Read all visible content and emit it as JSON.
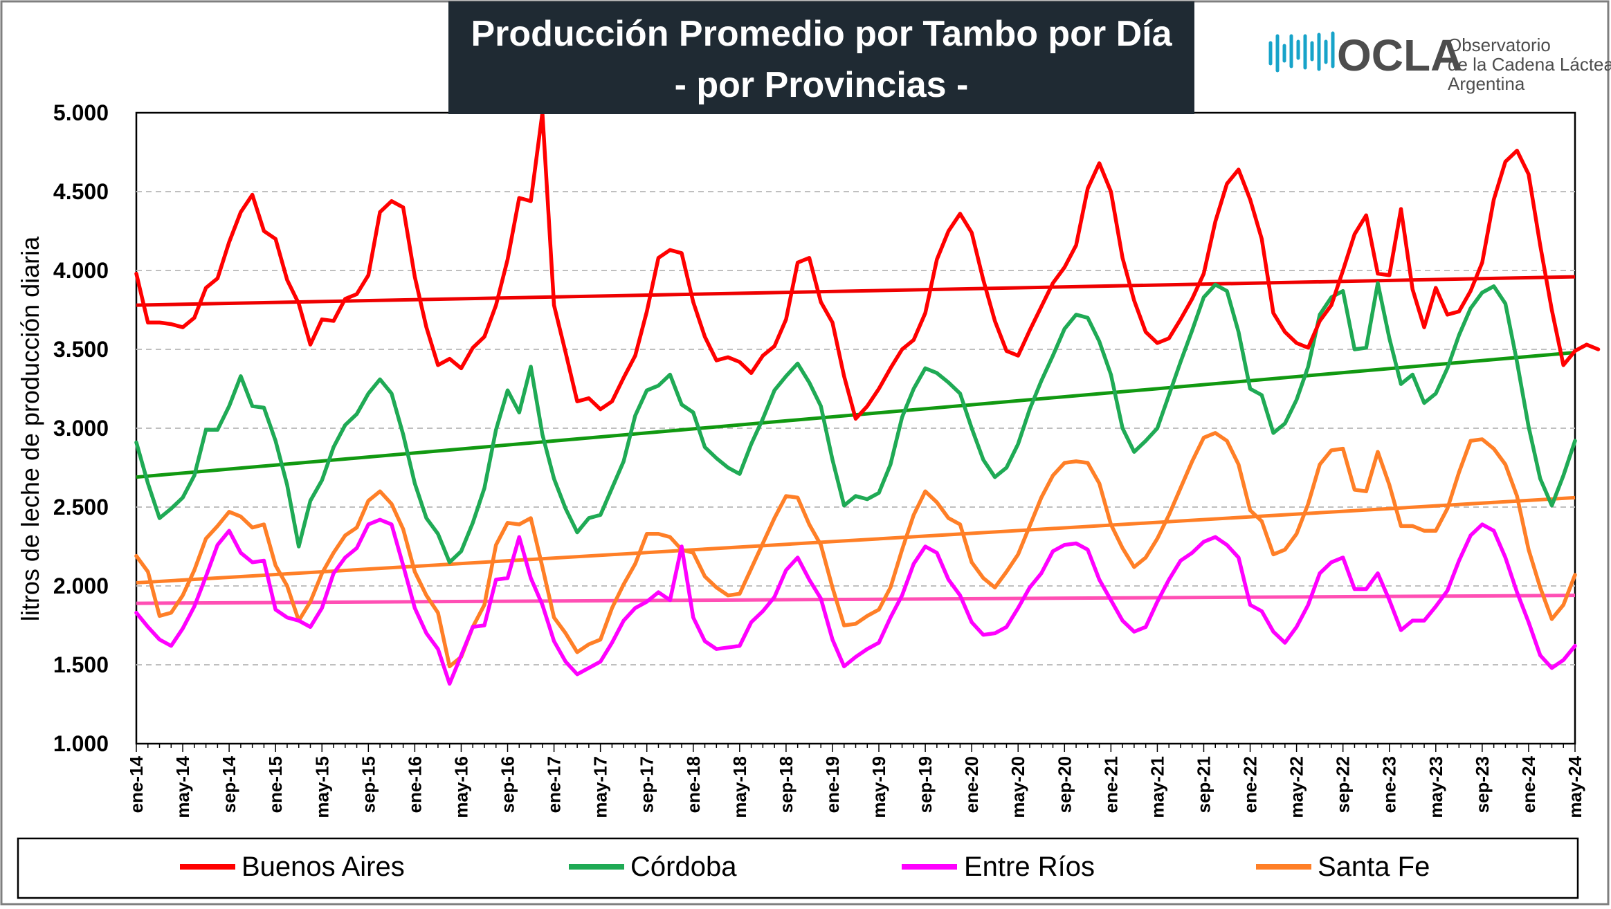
{
  "logo": {
    "name": "OCLA",
    "line1": "Observatorio",
    "line2": "de la Cadena Láctea",
    "line3": "Argentina"
  },
  "colors": {
    "buenos_aires": "#ff0000",
    "cordoba": "#1faa55",
    "entre_rios": "#ff00ff",
    "santa_fe": "#ff7f27",
    "trend_buenos_aires": "#ee0000",
    "trend_cordoba": "#119911",
    "trend_entre_rios": "#ff4fb4",
    "trend_santa_fe": "#ff7f27",
    "title_bg": "#1f2a33",
    "grid": "#bfbfbf",
    "logo_accent": "#17a3c9"
  },
  "chart_data": {
    "type": "line",
    "title_line1": "Producción Promedio por Tambo por Día",
    "title_line2": "- por Provincias -",
    "ylabel": "litros de leche de producción diaria",
    "ylim": [
      1000,
      5000
    ],
    "y_ticks": [
      "1.000",
      "1.500",
      "2.000",
      "2.500",
      "3.000",
      "3.500",
      "4.000",
      "4.500",
      "5.000"
    ],
    "y_tick_values": [
      1000,
      1500,
      2000,
      2500,
      3000,
      3500,
      4000,
      4500,
      5000
    ],
    "x_tick_labels": [
      "ene-14",
      "may-14",
      "sep-14",
      "ene-15",
      "may-15",
      "sep-15",
      "ene-16",
      "may-16",
      "sep-16",
      "ene-17",
      "may-17",
      "sep-17",
      "ene-18",
      "may-18",
      "sep-18",
      "ene-19",
      "may-19",
      "sep-19",
      "ene-20",
      "may-20",
      "sep-20",
      "ene-21",
      "may-21",
      "sep-21",
      "ene-22",
      "may-22",
      "sep-22",
      "ene-23",
      "may-23",
      "sep-23",
      "ene-24",
      "may-24"
    ],
    "x_start": "ene-14",
    "x_end": "may-24",
    "n_months": 125,
    "series": [
      {
        "name": "Buenos Aires",
        "key": "buenos_aires",
        "values": [
          3980,
          3670,
          3670,
          3660,
          3640,
          3700,
          3890,
          3950,
          4180,
          4370,
          4480,
          4250,
          4200,
          3940,
          3790,
          3530,
          3690,
          3680,
          3820,
          3850,
          3970,
          4370,
          4440,
          4400,
          3960,
          3640,
          3400,
          3440,
          3380,
          3510,
          3580,
          3780,
          4070,
          4460,
          4440,
          5000,
          3780,
          3480,
          3170,
          3190,
          3120,
          3170,
          3320,
          3460,
          3740,
          4080,
          4130,
          4110,
          3800,
          3580,
          3430,
          3450,
          3420,
          3350,
          3460,
          3520,
          3690,
          4050,
          4080,
          3800,
          3670,
          3330,
          3060,
          3140,
          3250,
          3380,
          3500,
          3560,
          3730,
          4070,
          4250,
          4360,
          4240,
          3940,
          3680,
          3490,
          3460,
          3620,
          3770,
          3920,
          4020,
          4160,
          4520,
          4680,
          4500,
          4080,
          3810,
          3610,
          3540,
          3570,
          3690,
          3820,
          3980,
          4310,
          4550,
          4640,
          4450,
          4200,
          3730,
          3610,
          3540,
          3510,
          3680,
          3780,
          4000,
          4230,
          4350,
          3980,
          3970,
          4390,
          3880,
          3640,
          3890,
          3720,
          3740,
          3870,
          4050,
          4450,
          4690,
          4760,
          4610,
          4160,
          3750,
          3400,
          3490,
          3530,
          3500
        ],
        "trend": [
          3780,
          3960
        ]
      },
      {
        "name": "Córdoba",
        "key": "cordoba",
        "values": [
          2910,
          2650,
          2430,
          2490,
          2560,
          2700,
          2990,
          2990,
          3140,
          3330,
          3140,
          3130,
          2920,
          2640,
          2250,
          2540,
          2670,
          2880,
          3020,
          3090,
          3220,
          3310,
          3220,
          2960,
          2650,
          2430,
          2330,
          2150,
          2220,
          2400,
          2620,
          2990,
          3240,
          3100,
          3390,
          2960,
          2680,
          2490,
          2340,
          2430,
          2450,
          2620,
          2790,
          3080,
          3240,
          3270,
          3340,
          3150,
          3100,
          2880,
          2810,
          2750,
          2710,
          2900,
          3060,
          3240,
          3330,
          3410,
          3290,
          3140,
          2800,
          2510,
          2570,
          2550,
          2590,
          2770,
          3070,
          3250,
          3380,
          3350,
          3290,
          3220,
          3000,
          2800,
          2690,
          2750,
          2900,
          3120,
          3300,
          3460,
          3630,
          3720,
          3700,
          3550,
          3340,
          3000,
          2850,
          2920,
          3000,
          3210,
          3420,
          3620,
          3830,
          3910,
          3870,
          3610,
          3250,
          3210,
          2970,
          3030,
          3180,
          3390,
          3720,
          3830,
          3870,
          3500,
          3510,
          3920,
          3570,
          3280,
          3340,
          3160,
          3220,
          3380,
          3590,
          3760,
          3860,
          3900,
          3790,
          3420,
          3010,
          2680,
          2510,
          2700,
          2920
        ],
        "trend": [
          2690,
          3480
        ]
      },
      {
        "name": "Entre Ríos",
        "key": "entre_rios",
        "values": [
          1830,
          1740,
          1660,
          1620,
          1730,
          1870,
          2060,
          2260,
          2350,
          2210,
          2150,
          2160,
          1850,
          1800,
          1780,
          1740,
          1860,
          2080,
          2180,
          2240,
          2390,
          2420,
          2390,
          2130,
          1860,
          1700,
          1600,
          1380,
          1560,
          1740,
          1750,
          2040,
          2050,
          2310,
          2050,
          1880,
          1650,
          1520,
          1440,
          1480,
          1520,
          1640,
          1780,
          1860,
          1900,
          1960,
          1910,
          2250,
          1800,
          1650,
          1600,
          1610,
          1620,
          1770,
          1840,
          1930,
          2100,
          2180,
          2040,
          1920,
          1660,
          1490,
          1550,
          1600,
          1640,
          1800,
          1940,
          2140,
          2250,
          2210,
          2040,
          1940,
          1770,
          1690,
          1700,
          1740,
          1860,
          1990,
          2080,
          2220,
          2260,
          2270,
          2230,
          2040,
          1910,
          1780,
          1710,
          1740,
          1900,
          2040,
          2160,
          2210,
          2280,
          2310,
          2260,
          2180,
          1880,
          1840,
          1710,
          1640,
          1740,
          1880,
          2080,
          2150,
          2180,
          1980,
          1980,
          2080,
          1910,
          1720,
          1780,
          1780,
          1870,
          1970,
          2160,
          2320,
          2390,
          2350,
          2180,
          1960,
          1770,
          1560,
          1480,
          1530,
          1620
        ],
        "trend": [
          1890,
          1940
        ]
      },
      {
        "name": "Santa Fe",
        "key": "santa_fe",
        "values": [
          2190,
          2090,
          1810,
          1830,
          1940,
          2100,
          2300,
          2380,
          2470,
          2440,
          2370,
          2390,
          2130,
          2000,
          1780,
          1900,
          2080,
          2210,
          2320,
          2370,
          2540,
          2600,
          2520,
          2360,
          2090,
          1940,
          1830,
          1490,
          1550,
          1740,
          1880,
          2260,
          2400,
          2390,
          2430,
          2120,
          1800,
          1700,
          1580,
          1630,
          1660,
          1860,
          2010,
          2140,
          2330,
          2330,
          2310,
          2230,
          2210,
          2060,
          1990,
          1940,
          1950,
          2110,
          2270,
          2430,
          2570,
          2560,
          2390,
          2260,
          1990,
          1750,
          1760,
          1810,
          1850,
          1990,
          2230,
          2450,
          2600,
          2530,
          2430,
          2390,
          2150,
          2050,
          1990,
          2090,
          2200,
          2380,
          2560,
          2700,
          2780,
          2790,
          2780,
          2650,
          2390,
          2240,
          2120,
          2180,
          2300,
          2450,
          2620,
          2790,
          2940,
          2970,
          2920,
          2770,
          2480,
          2410,
          2200,
          2230,
          2330,
          2520,
          2770,
          2860,
          2870,
          2610,
          2600,
          2850,
          2640,
          2380,
          2380,
          2350,
          2350,
          2490,
          2720,
          2920,
          2930,
          2870,
          2770,
          2570,
          2230,
          1990,
          1790,
          1880,
          2070
        ],
        "trend": [
          2020,
          2560
        ]
      }
    ],
    "legend": [
      "Buenos Aires",
      "Córdoba",
      "Entre Ríos",
      "Santa Fe"
    ],
    "legend_position": "bottom",
    "grid": "horizontal dashed"
  }
}
